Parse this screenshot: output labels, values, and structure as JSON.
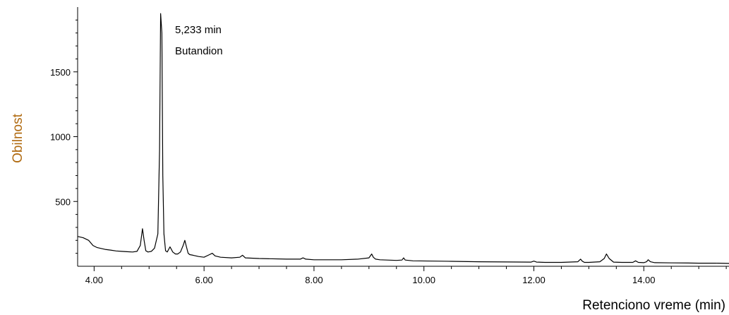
{
  "chart_data": {
    "type": "line",
    "xlabel": "Retenciono vreme (min)",
    "ylabel": "Obilnost",
    "xlim": [
      3.7,
      15.55
    ],
    "ylim": [
      0,
      2000
    ],
    "x_ticks": [
      4.0,
      6.0,
      8.0,
      10.0,
      12.0,
      14.0
    ],
    "x_tick_labels": [
      "4.00",
      "6.00",
      "8.00",
      "10.00",
      "12.00",
      "14.00"
    ],
    "y_ticks": [
      500,
      1000,
      1500
    ],
    "y_tick_labels": [
      "500",
      "1000",
      "1500"
    ],
    "annotation": {
      "line1": "5,233 min",
      "line2": "Butandion",
      "x": 5.233,
      "y": 1950
    },
    "grid": false,
    "colors": {
      "line": "#000000",
      "axis": "#000000",
      "ylabel": "#b06a10",
      "xlabel": "#000000"
    },
    "series": [
      {
        "x": [
          3.7,
          3.8,
          3.9,
          3.98,
          4.05,
          4.1,
          4.2,
          4.3,
          4.4,
          4.5,
          4.6,
          4.7,
          4.78,
          4.84,
          4.88,
          4.91,
          4.94,
          4.98,
          5.04,
          5.1,
          5.16,
          5.19,
          5.21,
          5.233,
          5.25,
          5.27,
          5.3,
          5.33,
          5.38,
          5.43,
          5.48,
          5.52,
          5.57,
          5.62,
          5.65,
          5.68,
          5.71,
          5.74,
          5.8,
          5.9,
          6.0,
          6.1,
          6.15,
          6.2,
          6.3,
          6.5,
          6.65,
          6.7,
          6.75,
          7.0,
          7.5,
          7.75,
          7.8,
          7.85,
          8.0,
          8.5,
          8.8,
          9.0,
          9.05,
          9.08,
          9.12,
          9.2,
          9.5,
          9.6,
          9.63,
          9.66,
          9.8,
          10.2,
          10.5,
          10.8,
          11.0,
          11.5,
          11.95,
          12.0,
          12.05,
          12.2,
          12.5,
          12.8,
          12.85,
          12.88,
          12.92,
          13.0,
          13.2,
          13.28,
          13.32,
          13.37,
          13.45,
          13.6,
          13.8,
          13.85,
          13.9,
          14.0,
          14.05,
          14.08,
          14.12,
          14.2,
          14.5,
          14.8,
          15.0,
          15.3,
          15.55
        ],
        "y": [
          230,
          220,
          200,
          160,
          145,
          140,
          130,
          125,
          118,
          115,
          112,
          110,
          115,
          160,
          290,
          200,
          120,
          110,
          115,
          140,
          250,
          900,
          1950,
          1800,
          700,
          250,
          120,
          110,
          150,
          110,
          95,
          95,
          110,
          160,
          200,
          150,
          100,
          90,
          85,
          75,
          70,
          90,
          100,
          80,
          70,
          65,
          70,
          85,
          65,
          60,
          55,
          55,
          65,
          55,
          50,
          50,
          55,
          65,
          95,
          70,
          55,
          50,
          45,
          48,
          65,
          48,
          42,
          40,
          38,
          36,
          35,
          33,
          32,
          40,
          32,
          30,
          30,
          35,
          55,
          40,
          30,
          30,
          35,
          60,
          95,
          60,
          32,
          30,
          30,
          42,
          30,
          28,
          35,
          50,
          35,
          28,
          26,
          25,
          24,
          24,
          22
        ]
      }
    ]
  }
}
